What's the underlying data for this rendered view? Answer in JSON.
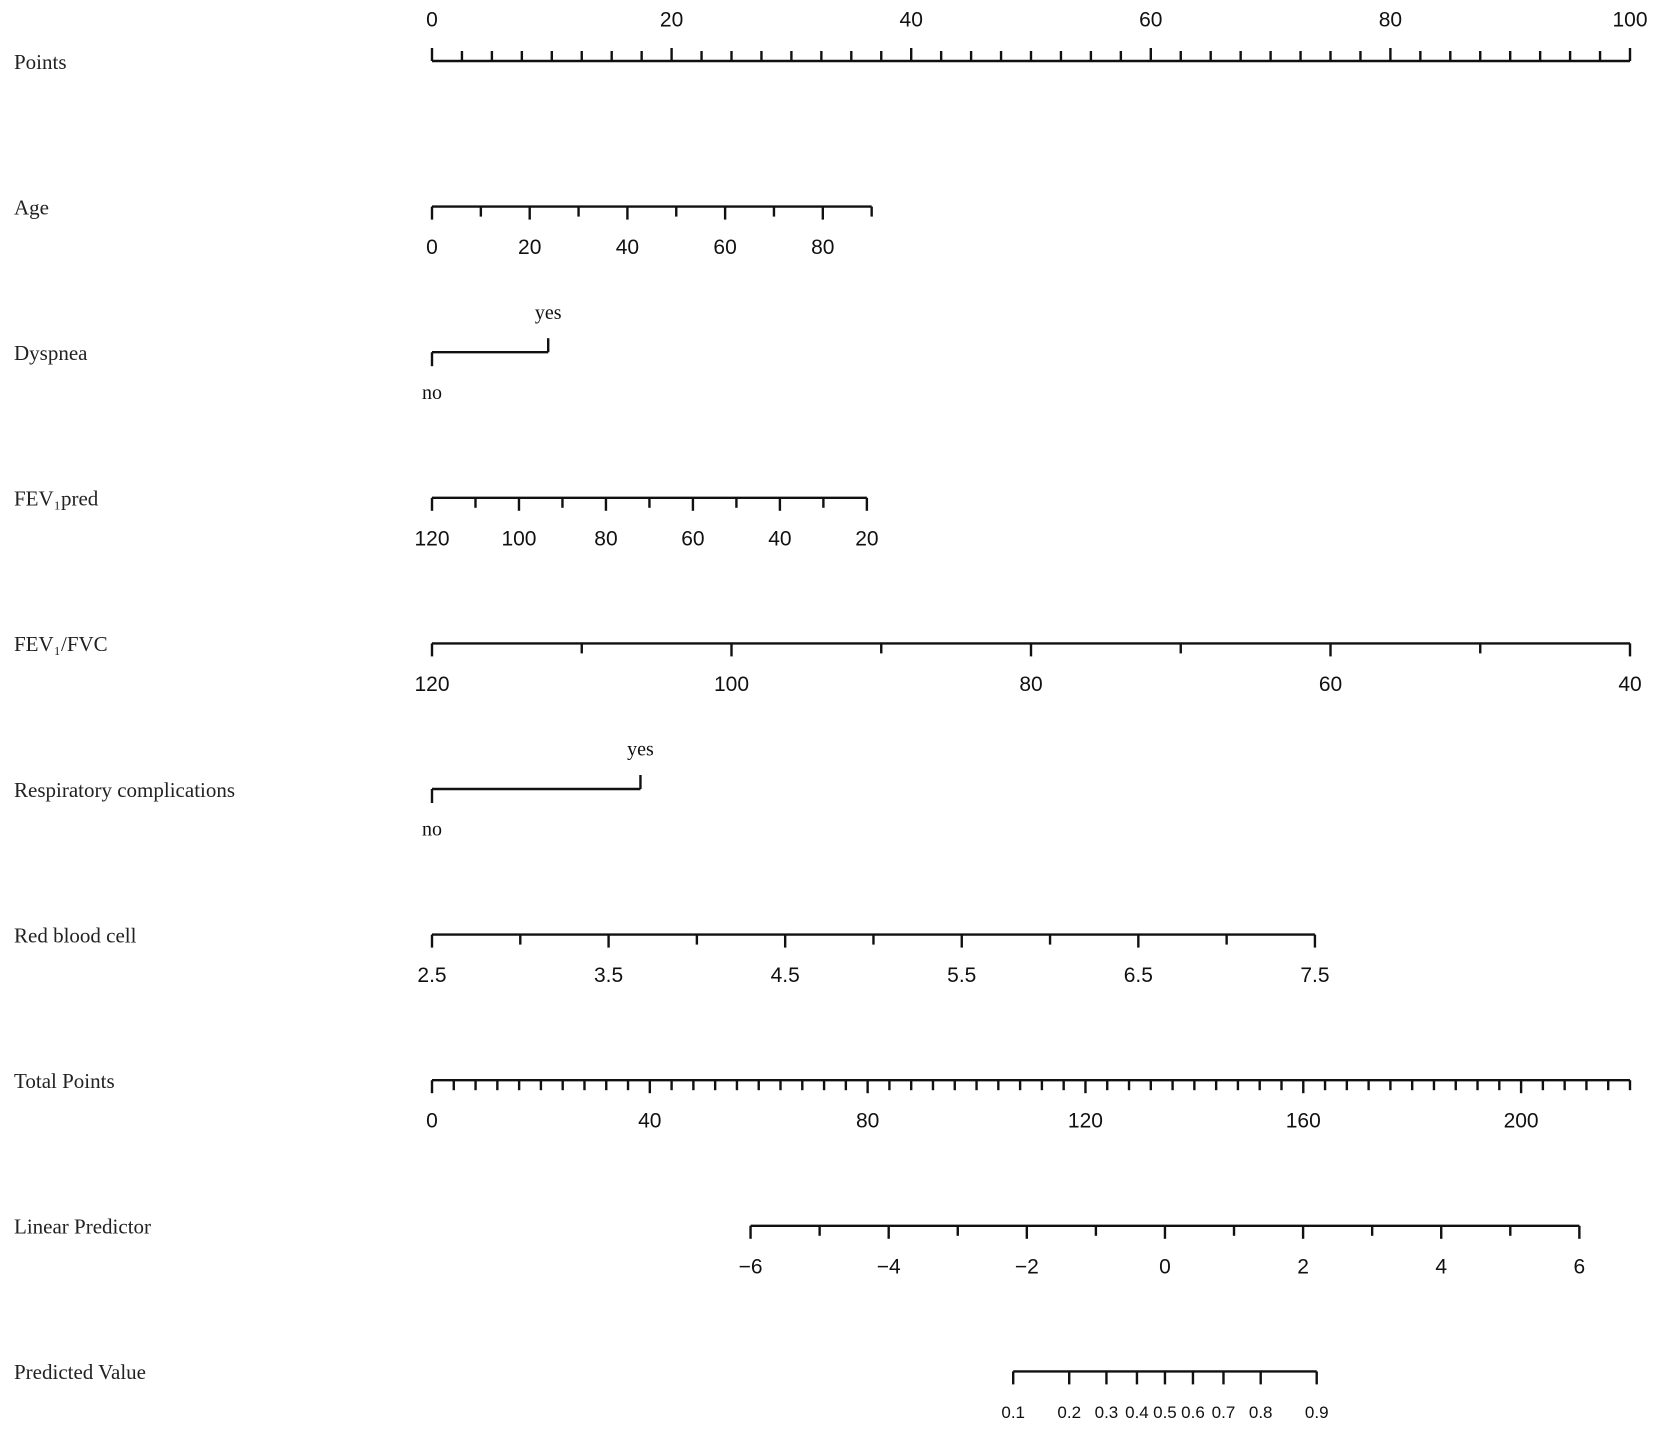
{
  "chart_data": {
    "type": "nomogram",
    "rows": [
      {
        "name": "Points",
        "lim": [
          0,
          100
        ],
        "points": [
          0,
          100
        ],
        "label_side": "above",
        "ticks": [
          0,
          20,
          40,
          60,
          80,
          100
        ],
        "minor_ticks": [
          2.5,
          5,
          7.5,
          10,
          12.5,
          15,
          17.5,
          22.5,
          25,
          27.5,
          30,
          32.5,
          35,
          37.5,
          42.5,
          45,
          47.5,
          50,
          52.5,
          55,
          57.5,
          62.5,
          65,
          67.5,
          70,
          72.5,
          75,
          77.5,
          82.5,
          85,
          87.5,
          90,
          92.5,
          95,
          97.5
        ]
      },
      {
        "name": "Age",
        "lim": [
          0,
          90
        ],
        "points": [
          0,
          36.7
        ],
        "ticks": [
          0,
          20,
          40,
          60,
          80
        ],
        "minor_ticks": [
          10,
          30,
          50,
          70,
          90
        ]
      },
      {
        "name": "Dyspnea",
        "categories": [
          "no",
          "yes"
        ],
        "points": [
          0,
          9.7
        ]
      },
      {
        "name": "FEV₁pred",
        "lim": [
          120,
          20
        ],
        "points": [
          0,
          36.3
        ],
        "ticks": [
          120,
          100,
          80,
          60,
          40,
          20
        ],
        "minor_ticks": [
          110,
          90,
          70,
          50,
          30
        ]
      },
      {
        "name": "FEV₁/FVC",
        "lim": [
          120,
          40
        ],
        "points": [
          0,
          100
        ],
        "ticks": [
          120,
          100,
          80,
          60,
          40
        ],
        "minor_ticks": [
          110,
          90,
          70,
          50
        ]
      },
      {
        "name": "Respiratory complications",
        "categories": [
          "no",
          "yes"
        ],
        "points": [
          0,
          17.4
        ]
      },
      {
        "name": "Red blood cell",
        "lim": [
          2.5,
          7.5
        ],
        "points": [
          0,
          73.7
        ],
        "ticks": [
          2.5,
          3.5,
          4.5,
          5.5,
          6.5,
          7.5
        ],
        "minor_ticks": [
          3,
          4,
          5,
          6,
          7
        ]
      },
      {
        "name": "Total Points",
        "lim": [
          0,
          220
        ],
        "total_scale": true,
        "ticks": [
          0,
          40,
          80,
          120,
          160,
          200
        ],
        "minor_ticks": [
          4,
          8,
          12,
          16,
          20,
          24,
          28,
          32,
          36,
          44,
          48,
          52,
          56,
          60,
          64,
          68,
          72,
          76,
          84,
          88,
          92,
          96,
          100,
          104,
          108,
          112,
          116,
          124,
          128,
          132,
          136,
          140,
          144,
          148,
          152,
          156,
          164,
          168,
          172,
          176,
          180,
          184,
          188,
          192,
          196,
          204,
          208,
          212,
          216,
          220
        ]
      },
      {
        "name": "Linear Predictor",
        "lim": [
          -6,
          6
        ],
        "total_points": [
          58.5,
          210.7
        ],
        "ticks": [
          {
            "value": -6,
            "label": "−6"
          },
          {
            "value": -4,
            "label": "−4"
          },
          {
            "value": -2,
            "label": "−2"
          },
          0,
          2,
          4,
          6
        ],
        "minor_ticks": [
          -5,
          -3,
          -1,
          1,
          3,
          5
        ]
      },
      {
        "name": "Predicted Value",
        "link": "logit",
        "ticks": [
          0.1,
          0.2,
          0.3,
          0.4,
          0.5,
          0.6,
          0.7,
          0.8,
          0.9
        ]
      }
    ]
  }
}
